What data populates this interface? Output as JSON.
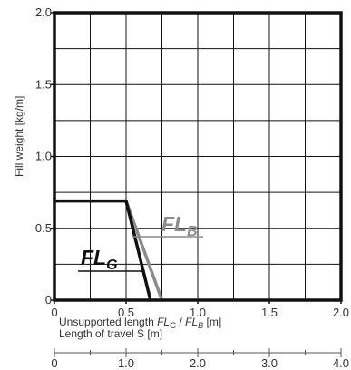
{
  "chart_data": {
    "type": "line",
    "ylabel": "Fill weight [kg/m]",
    "xlabel_line1_prefix": "Unsupported length ",
    "xlabel_line1_suffix": " [m]",
    "xlabel_line2": "Length of travel S [m]",
    "x_ticks": [
      "0",
      "0.5",
      "1.0",
      "1.5",
      "2.0"
    ],
    "y_ticks": [
      "0",
      "0.5",
      "1.0",
      "1.5",
      "2.0"
    ],
    "secondary_x_ticks": [
      "0",
      "1.0",
      "2.0",
      "3.0",
      "4.0"
    ],
    "xlim": [
      0,
      2.0
    ],
    "ylim": [
      0,
      2.0
    ],
    "secondary_xlim": [
      0,
      4.0
    ],
    "grid": true,
    "series": [
      {
        "name": "FLG",
        "label_main": "FL",
        "label_sub": "G",
        "color": "#111111",
        "points": [
          [
            0,
            0.69
          ],
          [
            0.5,
            0.69
          ],
          [
            0.67,
            0
          ]
        ]
      },
      {
        "name": "FLB",
        "label_main": "FL",
        "label_sub": "B",
        "color": "#8c8c8c",
        "points": [
          [
            0.5,
            0.69
          ],
          [
            0.75,
            0
          ]
        ]
      }
    ],
    "colors": {
      "axis": "#111111",
      "grid": "#111111",
      "text": "#333333",
      "series_g": "#111111",
      "series_b": "#8c8c8c"
    }
  }
}
